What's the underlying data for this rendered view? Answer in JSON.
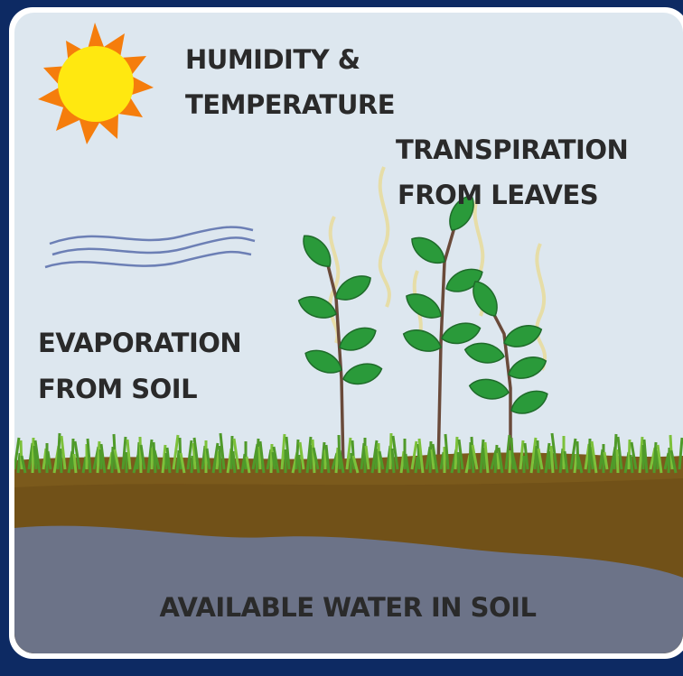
{
  "labels": {
    "humidity_temperature": [
      "HUMIDITY &",
      "TEMPERATURE"
    ],
    "transpiration": [
      "TRANSPIRATION",
      "FROM LEAVES"
    ],
    "evaporation": [
      "EVAPORATION",
      "FROM SOIL"
    ],
    "water": "AVAILABLE WATER IN SOIL"
  }
}
